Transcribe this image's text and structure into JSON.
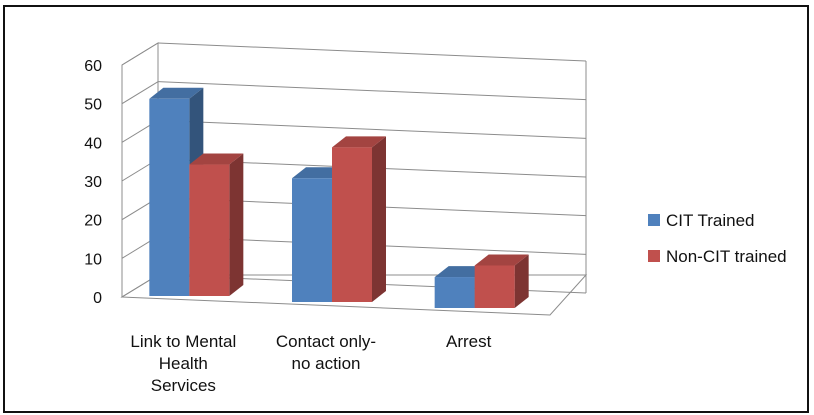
{
  "chart_data": {
    "type": "bar",
    "style": "3d-clustered-column",
    "categories": [
      [
        "Link to Mental",
        "Health",
        "Services"
      ],
      [
        "Contact only-",
        "no action"
      ],
      [
        "Arrest"
      ]
    ],
    "series": [
      {
        "name": "CIT Trained",
        "values": [
          51,
          32,
          8
        ],
        "color": "#4f81bd"
      },
      {
        "name": "Non-CIT trained",
        "values": [
          34,
          40,
          11
        ],
        "color": "#c0504d"
      }
    ],
    "y_ticks": [
      "0",
      "10",
      "20",
      "30",
      "40",
      "50",
      "60"
    ],
    "ylim": [
      0,
      60
    ],
    "grid": true,
    "legend_position": "right"
  }
}
